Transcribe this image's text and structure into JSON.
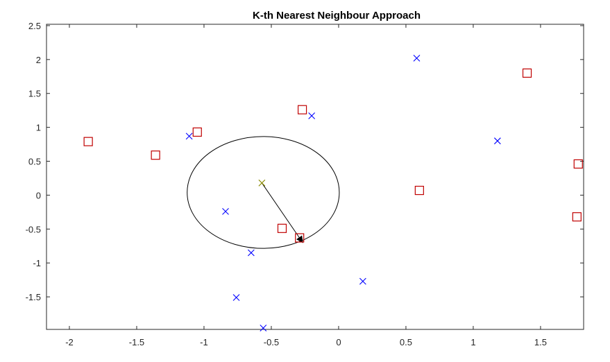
{
  "chart_data": {
    "type": "scatter",
    "title": "K-th Nearest Neighbour Approach",
    "xlabel": "",
    "ylabel": "",
    "xlim": [
      -2.17,
      1.82
    ],
    "ylim": [
      -1.98,
      2.52
    ],
    "x_ticks": [
      -2,
      -1.5,
      -1,
      -0.5,
      0,
      0.5,
      1,
      1.5
    ],
    "x_tick_labels": [
      "-2",
      "-1.5",
      "-1",
      "-0.5",
      "0",
      "0.5",
      "1",
      "1.5"
    ],
    "y_ticks": [
      2.5,
      2,
      1.5,
      1,
      0.5,
      0,
      -0.5,
      -1,
      -1.5
    ],
    "y_tick_labels": [
      "2.5",
      "2",
      "1.5",
      "1",
      "0.5",
      "0",
      "-0.5",
      "-1",
      "-1.5"
    ],
    "grid": false,
    "series": [
      {
        "marker": "cross",
        "color": "#0000ff",
        "points": [
          [
            0.58,
            2.02
          ],
          [
            -0.2,
            1.17
          ],
          [
            -1.11,
            0.87
          ],
          [
            1.18,
            0.8
          ],
          [
            -0.84,
            -0.24
          ],
          [
            -0.65,
            -0.85
          ],
          [
            0.18,
            -1.27
          ],
          [
            -0.76,
            -1.51
          ],
          [
            -0.56,
            -1.96
          ]
        ]
      },
      {
        "marker": "square",
        "color": "#c00000",
        "points": [
          [
            1.4,
            1.8
          ],
          [
            -0.27,
            1.26
          ],
          [
            -1.05,
            0.93
          ],
          [
            -1.86,
            0.79
          ],
          [
            -1.36,
            0.59
          ],
          [
            1.78,
            0.46
          ],
          [
            0.6,
            0.07
          ],
          [
            1.77,
            -0.32
          ],
          [
            -0.42,
            -0.49
          ],
          [
            -0.29,
            -0.63
          ]
        ]
      },
      {
        "marker": "cross",
        "color": "#8a8a00",
        "points": [
          [
            -0.57,
            0.18
          ]
        ]
      }
    ],
    "annotations": {
      "ellipse": {
        "center": [
          -0.56,
          0.04
        ],
        "rx": 0.565,
        "ry": 0.825,
        "color": "#000000"
      },
      "arrow": {
        "from": [
          -0.57,
          0.18
        ],
        "to": [
          -0.27,
          -0.69
        ],
        "color": "#000000"
      }
    }
  }
}
